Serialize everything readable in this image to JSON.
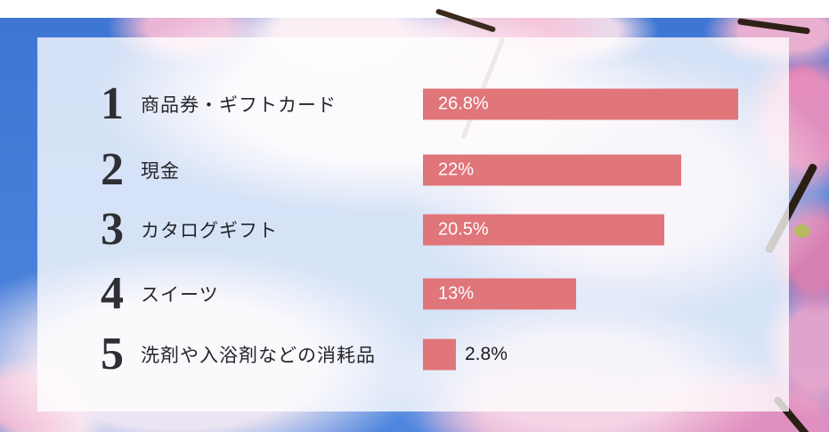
{
  "colors": {
    "bar": "#E0757A",
    "sky_top": "#3E76D4",
    "sky_bottom": "#4F86DE",
    "panel_overlay": "rgba(255,255,255,0.78)",
    "rank_text": "#2E2E33",
    "category_text": "#26262B",
    "percent_text_inside": "#FFFFFF",
    "percent_text_outside": "#1C1C1E"
  },
  "chart_data": {
    "type": "bar",
    "orientation": "horizontal",
    "title": "",
    "ranks": [
      "1",
      "2",
      "3",
      "4",
      "5"
    ],
    "categories": [
      "商品券・ギフトカード",
      "現金",
      "カタログギフト",
      "スイーツ",
      "洗剤や入浴剤などの消耗品"
    ],
    "values": [
      26.8,
      22,
      20.5,
      13,
      2.8
    ],
    "value_labels": [
      "26.8%",
      "22%",
      "20.5%",
      "13%",
      "2.8%"
    ],
    "value_label_position": [
      "inside",
      "inside",
      "inside",
      "inside",
      "outside"
    ],
    "xlim": [
      0,
      30
    ],
    "bar_color": "#E0757A",
    "grid": false,
    "legend": false
  }
}
